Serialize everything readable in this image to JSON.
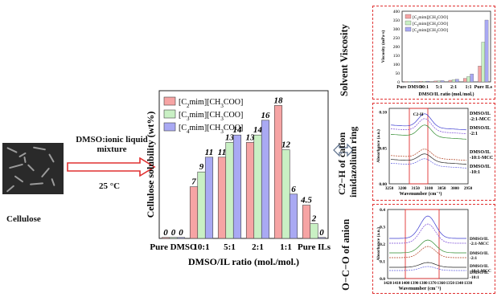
{
  "left": {
    "cellulose_label": "Cellulose",
    "mixture_label_line1": "DMSO:ionic liquid",
    "mixture_label_line2": "mixture",
    "temperature_label": "25 °C"
  },
  "chart_data": [
    {
      "type": "bar",
      "panel": "main",
      "categories": [
        "Pure DMSO",
        "10:1",
        "5:1",
        "2:1",
        "1:1",
        "Pure ILs"
      ],
      "series": [
        {
          "name": "[C2mim][CH3COO]",
          "color": "#f6a4a4",
          "values": [
            0,
            7,
            11,
            13,
            18,
            4.5
          ],
          "labels": [
            "0",
            "7",
            "11",
            "13",
            "18",
            "4.5"
          ]
        },
        {
          "name": "[C3mim][CH3COO]",
          "color": "#c9f0c4",
          "values": [
            0,
            9,
            13,
            14,
            12,
            2
          ],
          "labels": [
            "0",
            "9",
            "13",
            "14",
            "12",
            "2"
          ]
        },
        {
          "name": "[C4mim][CH3COO]",
          "color": "#a9a9f3",
          "values": [
            0,
            11,
            14,
            16,
            6,
            0
          ],
          "labels": [
            "0",
            "11",
            "14",
            "16",
            "6",
            "0"
          ]
        }
      ],
      "xlabel": "DMSO/IL ratio (mol./mol.)",
      "ylabel": "Cellulose solubility (wt%)",
      "ylim": [
        0,
        20
      ],
      "legend": "top-left"
    },
    {
      "type": "bar",
      "panel": "viscosity",
      "categories": [
        "Pure DMSO",
        "10:1",
        "5:1",
        "2:1",
        "1:1",
        "Pure ILs"
      ],
      "series": [
        {
          "name": "[C2mim][CH3COO]",
          "color": "#f6a4a4",
          "values": [
            2,
            3,
            5,
            9,
            20,
            90
          ]
        },
        {
          "name": "[C3mim][CH3COO]",
          "color": "#c9f0c4",
          "values": [
            2,
            3,
            6,
            12,
            30,
            225
          ]
        },
        {
          "name": "[C4mim][CH3COO]",
          "color": "#a9a9f3",
          "values": [
            2,
            4,
            7,
            15,
            45,
            350
          ]
        }
      ],
      "xlabel": "DMSO/IL ratio (mol./mol.)",
      "ylabel": "Viscosity (mPa·s)",
      "yticks": [
        "0",
        "50",
        "100",
        "150",
        "200",
        "250",
        "300",
        "350",
        "400"
      ],
      "ylim": [
        0,
        400
      ],
      "legend": "top-left"
    },
    {
      "type": "line",
      "panel": "c2h",
      "xlabel": "Wavenumber (cm⁻¹)",
      "ylabel": "Absorbance (a.u.)",
      "xticks": [
        "3250",
        "3200",
        "3150",
        "3100",
        "3050",
        "3000",
        "2950"
      ],
      "yticks": [
        "0.00",
        "0.05",
        "0.10"
      ],
      "annotation": "C2-H",
      "labels": [
        "DMSO/IL -2:1-MCC",
        "DMSO/IL -2:1",
        "DMSO/IL -10:1-MCC",
        "DMSO/IL -10:1"
      ]
    },
    {
      "type": "line",
      "panel": "oco",
      "xlabel": "Wavenumber (cm⁻¹)",
      "ylabel": "Absorbance (a.u.)",
      "xticks": [
        "1420",
        "1410",
        "1400",
        "1390",
        "1380",
        "1370",
        "1360",
        "1350",
        "1340",
        "1330"
      ],
      "yticks": [
        "0.0",
        "0.1",
        "0.2",
        "0.3",
        "0.4"
      ],
      "labels": [
        "DMSO/IL -2:1-MCC",
        "DMSO/IL -2:1",
        "DMSO/IL -10:1-MCC",
        "DMSO/IL -10:1"
      ]
    }
  ],
  "side_titles": {
    "viscosity": "Solvent Viscosity",
    "c2h_line1": "C2−H of cation",
    "c2h_line2": "imidazolium ring",
    "oco": "O−C−O of anion"
  },
  "colors": {
    "arrow": "#e03030",
    "panel_border": "#e03030",
    "double_arrow": "#5a6e8a"
  }
}
